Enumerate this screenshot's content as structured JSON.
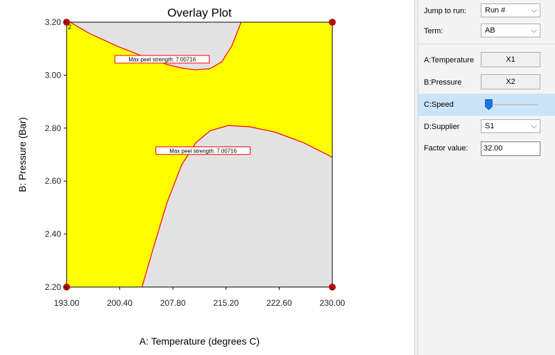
{
  "chart_data": {
    "type": "contour",
    "title": "Overlay Plot",
    "xlabel": "A: Temperature (degrees C)",
    "ylabel": "B: Pressure (Bar)",
    "xlim": [
      193.0,
      230.0
    ],
    "ylim": [
      2.2,
      3.2
    ],
    "x_ticks": [
      "193.00",
      "200.40",
      "207.80",
      "215.20",
      "222.60",
      "230.00"
    ],
    "y_ticks": [
      "2.20",
      "2.40",
      "2.60",
      "2.80",
      "3.00",
      "3.20"
    ],
    "colors": {
      "feasible": "#ffff00",
      "infeasible": "#e2e2e2",
      "contour": "#ff0000",
      "design_point": "#cc0000"
    },
    "contours": [
      {
        "label": "Max peel strength: 7.00716",
        "label_at": [
          206.3,
          3.06
        ],
        "points": [
          [
            193.5,
            3.2
          ],
          [
            196.0,
            3.16
          ],
          [
            200.0,
            3.11
          ],
          [
            204.0,
            3.067
          ],
          [
            207.0,
            3.04
          ],
          [
            209.0,
            3.027
          ],
          [
            211.0,
            3.02
          ],
          [
            213.0,
            3.025
          ],
          [
            214.6,
            3.05
          ],
          [
            216.0,
            3.11
          ],
          [
            217.3,
            3.2
          ]
        ]
      },
      {
        "label": "Max peel strength: 7.00716",
        "label_at": [
          212.0,
          2.715
        ],
        "points": [
          [
            203.5,
            2.2
          ],
          [
            205.0,
            2.34
          ],
          [
            207.0,
            2.52
          ],
          [
            209.0,
            2.66
          ],
          [
            211.0,
            2.745
          ],
          [
            213.0,
            2.79
          ],
          [
            215.5,
            2.81
          ],
          [
            218.5,
            2.805
          ],
          [
            222.0,
            2.785
          ],
          [
            226.0,
            2.745
          ],
          [
            230.0,
            2.69
          ]
        ]
      }
    ],
    "design_points": [
      {
        "x": 193.0,
        "y": 3.2,
        "label": "2"
      },
      {
        "x": 230.0,
        "y": 3.2
      },
      {
        "x": 193.0,
        "y": 2.2
      },
      {
        "x": 230.0,
        "y": 2.2
      }
    ]
  },
  "panel": {
    "jump_label": "Jump to run:",
    "jump_value": "Run #",
    "term_label": "Term:",
    "term_value": "AB",
    "a_label": "A:Temperature",
    "a_value": "X1",
    "b_label": "B:Pressure",
    "b_value": "X2",
    "c_label": "C:Speed",
    "c_slider_level": 0.0,
    "d_label": "D:Supplier",
    "d_value": "S1",
    "factor_label": "Factor value:",
    "factor_value": "32.00",
    "dropdown_glyph": "⌵",
    "accent": "#1a73d9"
  }
}
